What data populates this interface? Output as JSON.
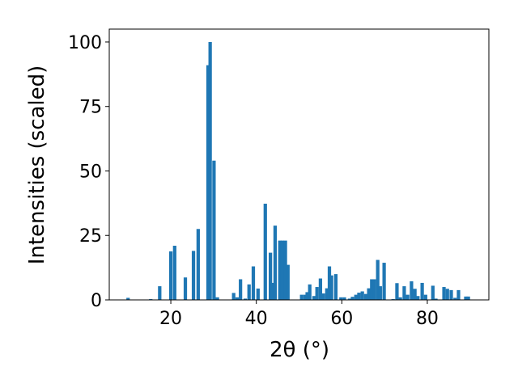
{
  "chart_data": {
    "type": "bar",
    "xlabel": "2θ (°)",
    "ylabel": "Intensities (scaled)",
    "x": [
      10,
      15.3,
      17.4,
      20,
      20.9,
      23.4,
      25.3,
      26.4,
      28.7,
      29.2,
      30.1,
      30.9,
      34.7,
      35.5,
      36.3,
      37.4,
      38.3,
      39.3,
      40.4,
      42.1,
      43.3,
      43.8,
      44.4,
      45.5,
      46.1,
      46.8,
      47.4,
      50.6,
      51.4,
      51.9,
      52.5,
      53.5,
      54.2,
      55,
      55.7,
      56.5,
      57.1,
      57.6,
      58.6,
      59.8,
      60.6,
      61.8,
      62.5,
      63.3,
      64,
      64.8,
      65.6,
      66.3,
      67,
      67.6,
      68.4,
      69,
      69.9,
      72,
      72.9,
      73.7,
      74.6,
      75.4,
      76.3,
      77.1,
      77.8,
      78.8,
      79.6,
      81.3,
      82,
      83.9,
      84.7,
      85.6,
      86.5,
      87.3,
      89,
      89.6
    ],
    "values": [
      0.8,
      0.3,
      5.3,
      18.8,
      21,
      8.7,
      19,
      27.5,
      91,
      100,
      54,
      1,
      2.7,
      1,
      8,
      0.5,
      6,
      13,
      4.4,
      37.3,
      18.3,
      6.6,
      28.8,
      23,
      23,
      23,
      13.6,
      2,
      2,
      3,
      6,
      1.5,
      5,
      8.3,
      2.5,
      4.5,
      13,
      9.5,
      10,
      1,
      1,
      0.5,
      1.2,
      2,
      2.8,
      3.3,
      2.3,
      4.5,
      8,
      8,
      15.5,
      5.3,
      14.4,
      0.3,
      6.5,
      1,
      5.3,
      2,
      7.2,
      4.3,
      1.5,
      6.6,
      2,
      5.5,
      0.5,
      5,
      4.3,
      3.8,
      0.8,
      3.8,
      1.3,
      1.3
    ],
    "color": "#1f77b4",
    "xlim": [
      5.6,
      94.4
    ],
    "xticks": [
      20,
      40,
      60,
      80
    ],
    "ylim": [
      0,
      105
    ],
    "yticks": [
      0,
      25,
      50,
      75,
      100
    ]
  }
}
